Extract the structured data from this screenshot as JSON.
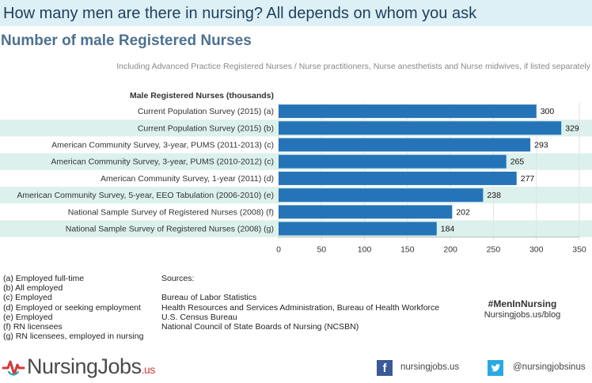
{
  "header": {
    "title": "How many men are there in nursing? All depends on whom you ask",
    "subtitle": "Number of male Registered Nurses",
    "note": "Including Advanced Practice Registered Nurses / Nurse practitioners, Nurse anesthetists and Nurse midwives, if listed separately"
  },
  "chart_data": {
    "type": "bar",
    "orientation": "horizontal",
    "category_header": "Male Registered Nurses (thousands)",
    "categories": [
      "Current Population Survey (2015) (a)",
      "Current Population Survey (2015) (b)",
      "American Community Survey, 3-year, PUMS (2011-2013) (c)",
      "American Community Survey, 3-year, PUMS (2010-2012) (c)",
      "American Community Survey, 1-year (2011) (d)",
      "American Community Survey, 5-year, EEO Tabulation (2006-2010) (e)",
      "National Sample Survey of Registered Nurses (2008) (f)",
      "National Sample Survey of Registered Nurses (2008) (g)"
    ],
    "values": [
      300,
      329,
      293,
      265,
      277,
      238,
      202,
      184
    ],
    "xlim": [
      0,
      350
    ],
    "xticks": [
      0,
      50,
      100,
      150,
      200,
      250,
      300,
      350
    ],
    "grid": true,
    "bar_color": "#2574b8",
    "band_color": "#dcf1ec"
  },
  "footnotes": [
    "(a) Employed full-time",
    "(b) All employed",
    "(c) Employed",
    "(d) Employed or seeking employment",
    "(e) Employed",
    "(f) RN licensees",
    "(g) RN licensees, employed in nursing"
  ],
  "sources": {
    "heading": "Sources:",
    "items": [
      "Bureau of Labor Statistics",
      "Health Resources and Services Administration, Bureau of Health Workforce",
      "U.S. Census Bureau",
      "National Council of State Boards of Nursing (NCSBN)"
    ]
  },
  "branding": {
    "hashtag": "#MenInNursing",
    "site": "Nursingjobs.us/blog",
    "logo_main": "NursingJobs",
    "logo_suffix": ".us",
    "facebook": "nursingjobs.us",
    "twitter": "@nursingjobsinus",
    "logo_red": "#d33a3a",
    "logo_teal": "#2aa6a8"
  }
}
